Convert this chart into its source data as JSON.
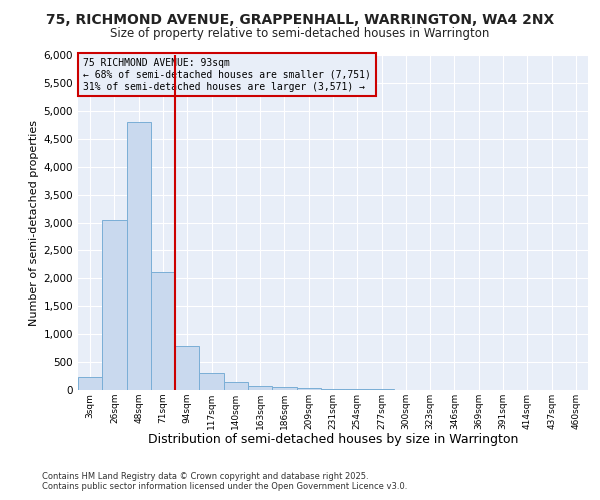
{
  "title_line1": "75, RICHMOND AVENUE, GRAPPENHALL, WARRINGTON, WA4 2NX",
  "title_line2": "Size of property relative to semi-detached houses in Warrington",
  "xlabel": "Distribution of semi-detached houses by size in Warrington",
  "ylabel": "Number of semi-detached properties",
  "bin_labels": [
    "3sqm",
    "26sqm",
    "48sqm",
    "71sqm",
    "94sqm",
    "117sqm",
    "140sqm",
    "163sqm",
    "186sqm",
    "209sqm",
    "231sqm",
    "254sqm",
    "277sqm",
    "300sqm",
    "323sqm",
    "346sqm",
    "369sqm",
    "391sqm",
    "414sqm",
    "437sqm",
    "460sqm"
  ],
  "bar_heights": [
    240,
    3050,
    4800,
    2120,
    780,
    305,
    140,
    70,
    45,
    30,
    20,
    15,
    10,
    8,
    5,
    4,
    3,
    2,
    1,
    1,
    0
  ],
  "bar_color": "#c9d9ee",
  "bar_edge_color": "#7aaed6",
  "vline_color": "#cc0000",
  "vline_x_idx": 3,
  "annotation_title": "75 RICHMOND AVENUE: 93sqm",
  "annotation_left": "← 68% of semi-detached houses are smaller (7,751)",
  "annotation_right": "31% of semi-detached houses are larger (3,571) →",
  "annotation_box_edge_color": "#cc0000",
  "ylim": [
    0,
    6000
  ],
  "yticks": [
    0,
    500,
    1000,
    1500,
    2000,
    2500,
    3000,
    3500,
    4000,
    4500,
    5000,
    5500,
    6000
  ],
  "footer_line1": "Contains HM Land Registry data © Crown copyright and database right 2025.",
  "footer_line2": "Contains public sector information licensed under the Open Government Licence v3.0.",
  "fig_bg_color": "#ffffff",
  "plot_bg_color": "#e8eef8",
  "grid_color": "#ffffff",
  "title_fontsize": 10,
  "subtitle_fontsize": 8.5,
  "ylabel_fontsize": 8,
  "xlabel_fontsize": 9
}
